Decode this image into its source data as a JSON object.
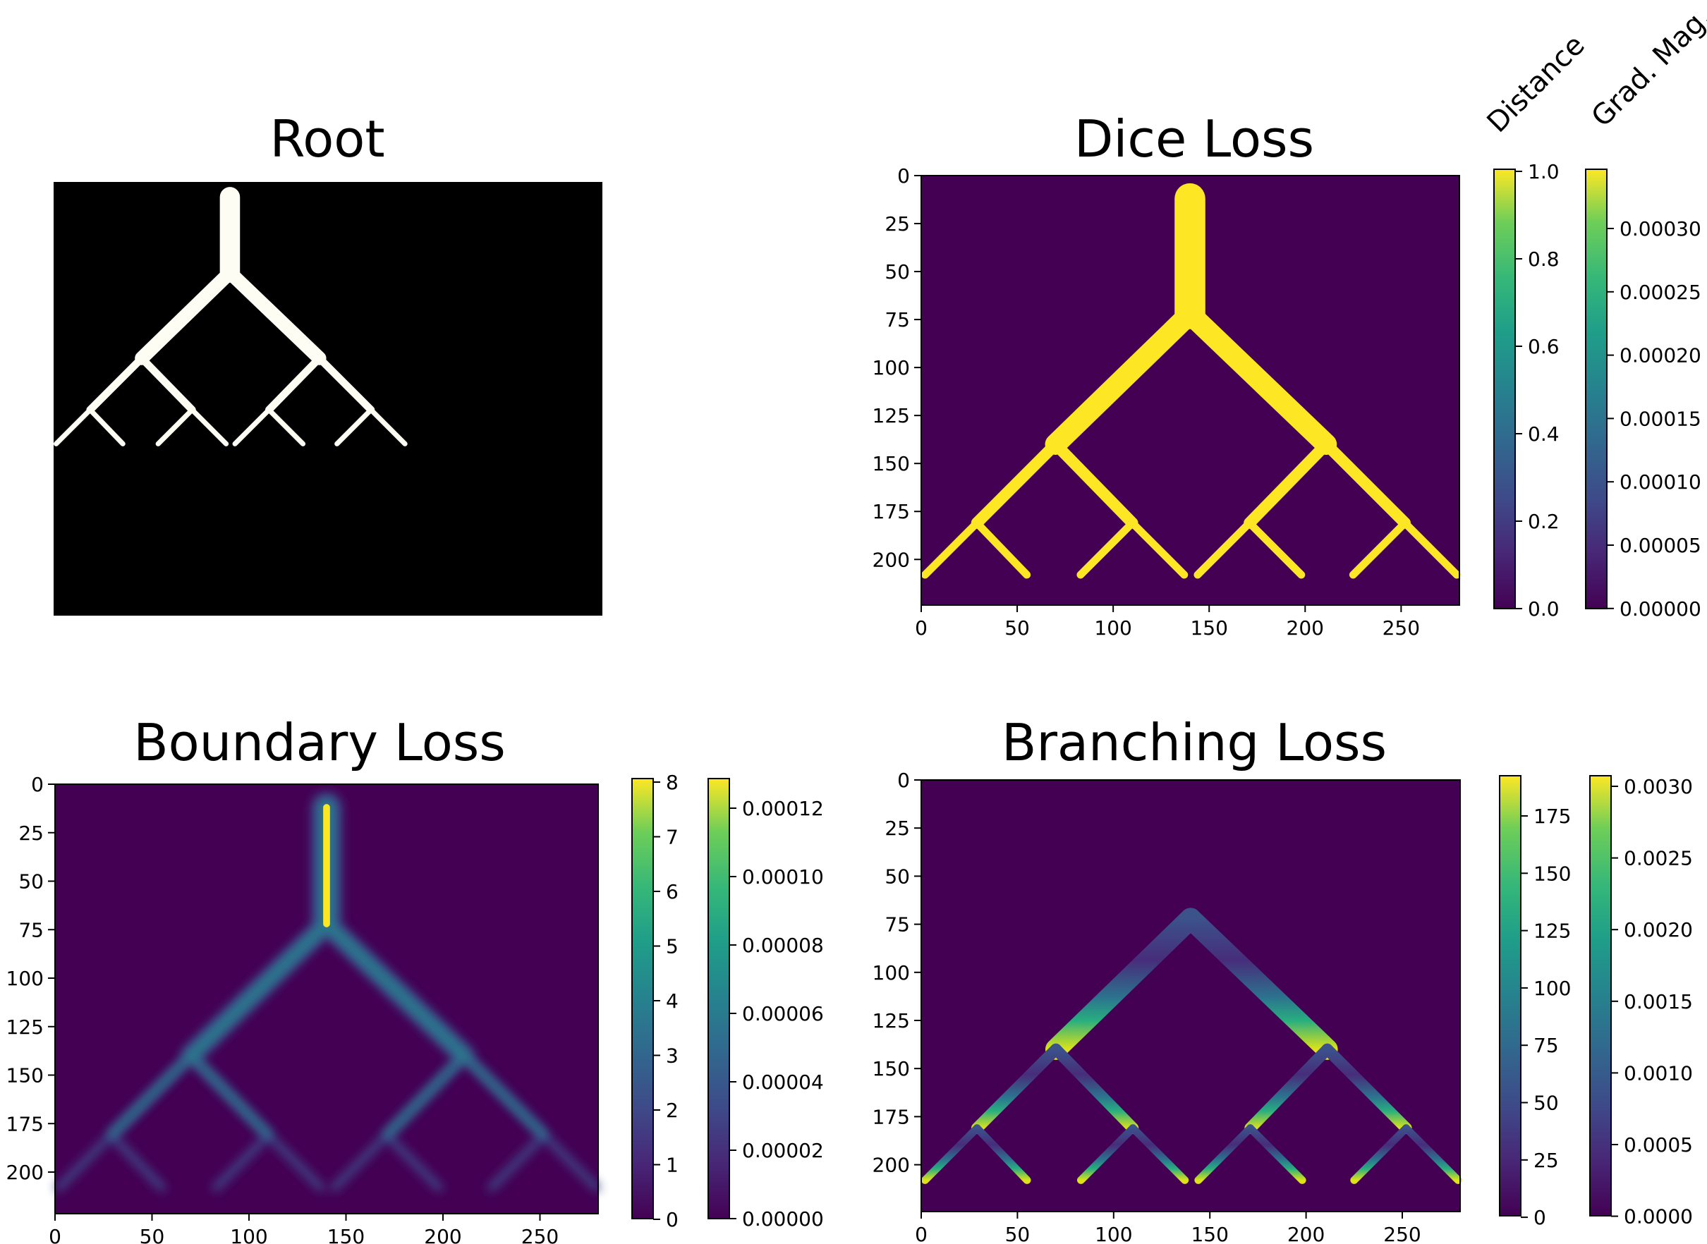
{
  "panels": {
    "root": {
      "title": "Root"
    },
    "dice": {
      "title": "Dice Loss",
      "xticks": [
        "0",
        "50",
        "100",
        "150",
        "200",
        "250"
      ],
      "yticks": [
        "0",
        "25",
        "50",
        "75",
        "100",
        "125",
        "150",
        "175",
        "200"
      ],
      "cb1_label": "Distance",
      "cb2_label": "Grad. Mag.",
      "cb1_ticks": [
        "1.0",
        "0.8",
        "0.6",
        "0.4",
        "0.2",
        "0.0"
      ],
      "cb2_ticks": [
        "0.00030",
        "0.00025",
        "0.00020",
        "0.00015",
        "0.00010",
        "0.00005",
        "0.00000"
      ]
    },
    "boundary": {
      "title": "Boundary Loss",
      "xticks": [
        "0",
        "50",
        "100",
        "150",
        "200",
        "250"
      ],
      "yticks": [
        "0",
        "25",
        "50",
        "75",
        "100",
        "125",
        "150",
        "175",
        "200"
      ],
      "cb1_ticks": [
        "8",
        "7",
        "6",
        "5",
        "4",
        "3",
        "2",
        "1",
        "0"
      ],
      "cb2_ticks": [
        "0.00012",
        "0.00010",
        "0.00008",
        "0.00006",
        "0.00004",
        "0.00002",
        "0.00000"
      ]
    },
    "branching": {
      "title": "Branching Loss",
      "xticks": [
        "0",
        "50",
        "100",
        "150",
        "200",
        "250"
      ],
      "yticks": [
        "0",
        "25",
        "50",
        "75",
        "100",
        "125",
        "150",
        "175",
        "200"
      ],
      "cb1_ticks": [
        "175",
        "150",
        "125",
        "100",
        "75",
        "50",
        "25",
        "0"
      ],
      "cb2_ticks": [
        "0.0030",
        "0.0025",
        "0.0020",
        "0.0015",
        "0.0010",
        "0.0005",
        "0.0000"
      ]
    }
  },
  "colors": {
    "viridis_dark": "#440154",
    "viridis_yellow": "#fde725",
    "root_bg": "#000000",
    "root_fg": "#fdfdf3"
  }
}
